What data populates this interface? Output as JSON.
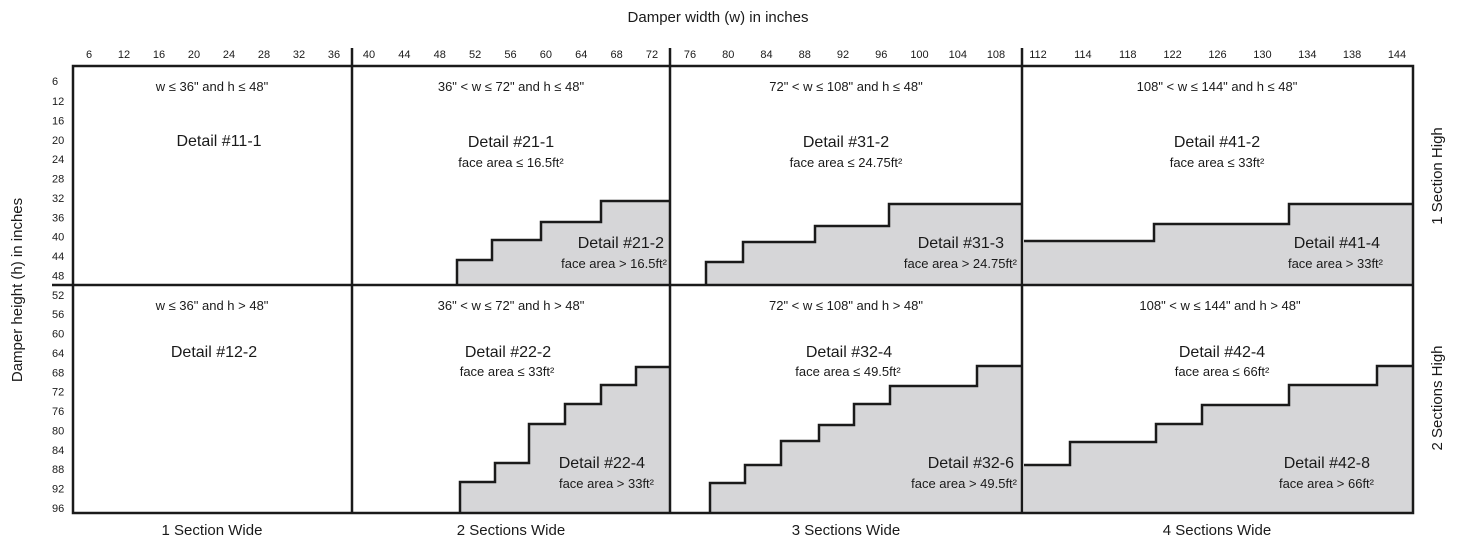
{
  "x_axis_title": "Damper width (w) in inches",
  "y_axis_title": "Damper height (h) in inches",
  "x_ticks": [
    "6",
    "12",
    "16",
    "20",
    "24",
    "28",
    "32",
    "36",
    "40",
    "44",
    "48",
    "52",
    "56",
    "60",
    "64",
    "68",
    "72",
    "76",
    "80",
    "84",
    "88",
    "92",
    "96",
    "100",
    "104",
    "108",
    "112",
    "114",
    "118",
    "122",
    "126",
    "130",
    "134",
    "138",
    "144"
  ],
  "y_ticks": [
    "6",
    "12",
    "16",
    "20",
    "24",
    "28",
    "32",
    "36",
    "40",
    "44",
    "48",
    "52",
    "56",
    "60",
    "64",
    "68",
    "72",
    "76",
    "80",
    "84",
    "88",
    "92",
    "96"
  ],
  "row_labels": [
    "1 Section High",
    "2 Sections High"
  ],
  "column_labels": [
    "1 Section Wide",
    "2 Sections Wide",
    "3 Sections Wide",
    "4 Sections Wide"
  ],
  "cells": [
    {
      "condition": "w ≤ 36\" and h ≤ 48\"",
      "detail": "Detail #11-1",
      "area": "",
      "sub_detail": "",
      "sub_area": ""
    },
    {
      "condition": "36\" < w ≤ 72\" and h ≤ 48\"",
      "detail": "Detail #21-1",
      "area": "face area ≤ 16.5ft²",
      "sub_detail": "Detail #21-2",
      "sub_area": "face area > 16.5ft²"
    },
    {
      "condition": "72\" < w ≤ 108\" and h ≤ 48\"",
      "detail": "Detail #31-2",
      "area": "face area ≤ 24.75ft²",
      "sub_detail": "Detail #31-3",
      "sub_area": "face area > 24.75ft²"
    },
    {
      "condition": "108\" < w ≤ 144\" and h ≤ 48\"",
      "detail": "Detail #41-2",
      "area": "face area ≤ 33ft²",
      "sub_detail": "Detail #41-4",
      "sub_area": "face area > 33ft²"
    },
    {
      "condition": "w ≤ 36\" and h > 48\"",
      "detail": "Detail #12-2",
      "area": "",
      "sub_detail": "",
      "sub_area": ""
    },
    {
      "condition": "36\" < w ≤ 72\" and h > 48\"",
      "detail": "Detail #22-2",
      "area": "face area ≤ 33ft²",
      "sub_detail": "Detail #22-4",
      "sub_area": "face area > 33ft²"
    },
    {
      "condition": "72\" < w ≤ 108\" and h > 48\"",
      "detail": "Detail #32-4",
      "area": "face area ≤ 49.5ft²",
      "sub_detail": "Detail #32-6",
      "sub_area": "face area > 49.5ft²"
    },
    {
      "condition": "108\" < w ≤ 144\" and h > 48\"",
      "detail": "Detail #42-4",
      "area": "face area ≤ 66ft²",
      "sub_detail": "Detail #42-8",
      "sub_area": "face area > 66ft²"
    }
  ],
  "colors": {
    "line": "#1a1a1a",
    "fill": "#d6d6d8",
    "background": "#ffffff"
  }
}
